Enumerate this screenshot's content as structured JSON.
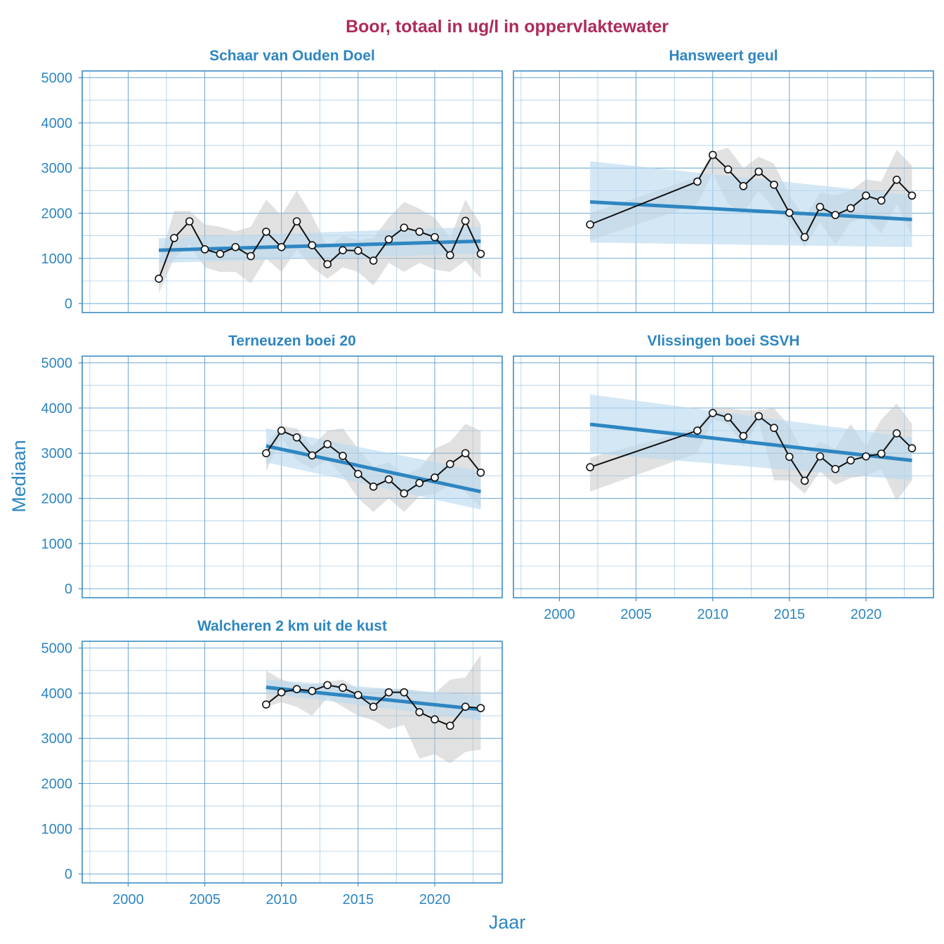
{
  "title": "Boor, totaal in ug/l in oppervlaktewater",
  "colors": {
    "title": "#AD2B5A",
    "axis": "#2E86C1",
    "trend": "#2E86C1",
    "band": "#B9D8EF",
    "variance": "#BDBDBD",
    "line": "#111111"
  },
  "chart_data": {
    "type": "line",
    "xlabel": "Jaar",
    "ylabel": "Mediaan",
    "xlim": [
      1997,
      2024.4
    ],
    "ylim": [
      -200,
      5150
    ],
    "xticks": [
      2000,
      2005,
      2010,
      2015,
      2020
    ],
    "yticks": [
      0,
      1000,
      2000,
      3000,
      4000,
      5000
    ],
    "panels": [
      {
        "name": "Schaar van Ouden Doel",
        "years": [
          2002,
          2003,
          2004,
          2005,
          2006,
          2007,
          2008,
          2009,
          2010,
          2011,
          2012,
          2013,
          2014,
          2015,
          2016,
          2017,
          2018,
          2019,
          2020,
          2021,
          2022,
          2023
        ],
        "median": [
          550,
          1450,
          1820,
          1200,
          1100,
          1250,
          1050,
          1590,
          1250,
          1820,
          1290,
          870,
          1180,
          1170,
          950,
          1420,
          1680,
          1590,
          1470,
          1070,
          1830,
          1100
        ],
        "lower": [
          230,
          1000,
          1300,
          800,
          700,
          700,
          450,
          1000,
          700,
          1200,
          800,
          550,
          800,
          700,
          400,
          900,
          700,
          900,
          750,
          700,
          950,
          550
        ],
        "upper": [
          900,
          2050,
          2050,
          1750,
          1700,
          1600,
          1700,
          2300,
          1950,
          2500,
          1950,
          1250,
          1500,
          1400,
          1450,
          1900,
          2250,
          2100,
          1900,
          1450,
          2300,
          1750
        ],
        "trend": [
          1180,
          1380
        ],
        "trend_ci_start": [
          900,
          1450
        ],
        "trend_ci_end": [
          1100,
          1700
        ]
      },
      {
        "name": "Hansweert geul",
        "years": [
          2002,
          2009,
          2010,
          2011,
          2012,
          2013,
          2014,
          2015,
          2016,
          2017,
          2018,
          2019,
          2020,
          2021,
          2022,
          2023
        ],
        "median": [
          1750,
          2700,
          3290,
          2970,
          2600,
          2920,
          2630,
          2010,
          1470,
          2140,
          1960,
          2110,
          2390,
          2280,
          2740,
          2390
        ],
        "lower": [
          1400,
          2200,
          2900,
          2200,
          2000,
          2500,
          2100,
          1800,
          1250,
          1800,
          1300,
          1800,
          1900,
          1550,
          2200,
          1500
        ],
        "upper": [
          2000,
          2800,
          3350,
          3450,
          3000,
          3250,
          3100,
          2400,
          1900,
          2450,
          2400,
          2500,
          2750,
          2700,
          3400,
          3050
        ],
        "trend": [
          2250,
          1860
        ],
        "trend_ci_start": [
          1350,
          3150
        ],
        "trend_ci_end": [
          1250,
          2400
        ]
      },
      {
        "name": "Terneuzen boei 20",
        "years": [
          2009,
          2010,
          2011,
          2012,
          2013,
          2014,
          2015,
          2016,
          2017,
          2018,
          2019,
          2020,
          2021,
          2022,
          2023
        ],
        "median": [
          3000,
          3500,
          3350,
          2950,
          3200,
          2940,
          2540,
          2260,
          2420,
          2110,
          2340,
          2460,
          2760,
          3000,
          2570
        ],
        "lower": [
          2600,
          3350,
          2850,
          2650,
          2850,
          2500,
          2000,
          1700,
          2000,
          1700,
          2050,
          2100,
          2300,
          2150,
          1800
        ],
        "upper": [
          3200,
          3600,
          3550,
          3150,
          3500,
          3550,
          3100,
          2700,
          2800,
          2500,
          2650,
          3100,
          3250,
          3650,
          3500
        ],
        "trend": [
          3160,
          2150
        ],
        "trend_ci_start": [
          2800,
          3550
        ],
        "trend_ci_end": [
          1750,
          2600
        ]
      },
      {
        "name": "Vlissingen boei SSVH",
        "years": [
          2002,
          2009,
          2010,
          2011,
          2012,
          2013,
          2014,
          2015,
          2016,
          2017,
          2018,
          2019,
          2020,
          2021,
          2022,
          2023
        ],
        "median": [
          2690,
          3500,
          3890,
          3790,
          3380,
          3820,
          3560,
          2920,
          2390,
          2930,
          2650,
          2840,
          2930,
          2990,
          3440,
          3110
        ],
        "lower": [
          2150,
          3000,
          3750,
          3650,
          3150,
          3700,
          2400,
          2400,
          2100,
          2600,
          2300,
          2450,
          2500,
          2650,
          1950,
          2400
        ],
        "upper": [
          2900,
          3550,
          4000,
          4000,
          3950,
          3950,
          4000,
          3600,
          2950,
          3250,
          3100,
          3650,
          3150,
          3750,
          4100,
          3650
        ],
        "trend": [
          3640,
          2840
        ],
        "trend_ci_start": [
          3000,
          4300
        ],
        "trend_ci_end": [
          2400,
          3350
        ]
      },
      {
        "name": "Walcheren 2 km uit de kust",
        "years": [
          2009,
          2010,
          2011,
          2012,
          2013,
          2014,
          2015,
          2016,
          2017,
          2018,
          2019,
          2020,
          2021,
          2022,
          2023
        ],
        "median": [
          3750,
          4020,
          4090,
          4050,
          4180,
          4120,
          3960,
          3700,
          4020,
          4020,
          3580,
          3420,
          3280,
          3700,
          3670
        ],
        "lower": [
          3700,
          3800,
          3700,
          3500,
          3900,
          3700,
          3500,
          3400,
          3200,
          3300,
          2550,
          2650,
          2450,
          2700,
          2750
        ],
        "upper": [
          4500,
          4300,
          4200,
          4200,
          4250,
          4300,
          4100,
          4100,
          4100,
          4100,
          4050,
          4000,
          4300,
          4350,
          4850
        ],
        "trend": [
          4130,
          3640
        ],
        "trend_ci_start": [
          4000,
          4300
        ],
        "trend_ci_end": [
          3400,
          3950
        ]
      }
    ]
  }
}
